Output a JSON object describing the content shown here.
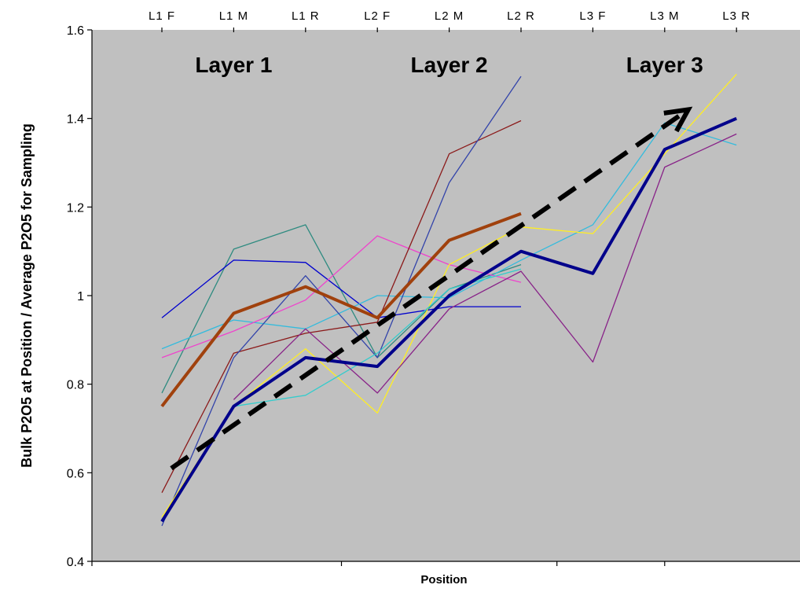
{
  "chart_data": {
    "type": "line",
    "title": "",
    "xlabel": "Position",
    "ylabel": "Bulk P2O5 at Position / Average P2O5 for Sampling",
    "ylim": [
      0.4,
      1.6
    ],
    "y_ticks": [
      "0.4",
      "0.6",
      "0.8",
      "1",
      "1.2",
      "1.4",
      "1.6"
    ],
    "categories": [
      "L1 F",
      "L1 M",
      "L1 R",
      "L2 F",
      "L2 M",
      "L2 R",
      "L3 F",
      "L3 M",
      "L3 R"
    ],
    "x_axis_position": "top",
    "grid": false,
    "plot_background": "#c0c0c0",
    "layer_labels": [
      {
        "text": "Layer 1",
        "category": "L1 M"
      },
      {
        "text": "Layer 2",
        "category": "L2 M"
      },
      {
        "text": "Layer 3",
        "category": "L3 M"
      }
    ],
    "trend_arrow": {
      "from": {
        "category": "L1 F",
        "value": 0.61
      },
      "to": {
        "category": "L3 M",
        "value": 1.42
      },
      "color": "#000000",
      "style": "dashed"
    },
    "series": [
      {
        "color": "#a0410d",
        "width": 4,
        "values": [
          0.75,
          0.96,
          1.02,
          0.95,
          1.125,
          1.185,
          null,
          null,
          null
        ]
      },
      {
        "color": "#00008b",
        "width": 4,
        "values": [
          0.49,
          0.75,
          0.86,
          0.84,
          1.0,
          1.1,
          1.05,
          1.33,
          1.4
        ]
      },
      {
        "color": "#2e8b80",
        "width": 1.3,
        "values": [
          0.78,
          1.105,
          1.16,
          0.86,
          1.015,
          1.07,
          null,
          null,
          null
        ]
      },
      {
        "color": "#0000cd",
        "width": 1.3,
        "values": [
          0.95,
          1.08,
          1.075,
          0.95,
          0.975,
          0.975,
          null,
          null,
          null
        ]
      },
      {
        "color": "#33bbdd",
        "width": 1.3,
        "values": [
          0.88,
          0.945,
          0.925,
          1.0,
          0.995,
          1.08,
          1.16,
          1.39,
          1.34
        ]
      },
      {
        "color": "#ee44cc",
        "width": 1.3,
        "values": [
          0.86,
          0.92,
          0.99,
          1.135,
          1.07,
          1.03,
          null,
          null,
          null
        ]
      },
      {
        "color": "#8b1a1a",
        "width": 1.3,
        "values": [
          0.555,
          0.87,
          0.915,
          0.94,
          1.32,
          1.395,
          null,
          null,
          null
        ]
      },
      {
        "color": "#3344aa",
        "width": 1.3,
        "values": [
          0.48,
          0.86,
          1.045,
          0.86,
          1.255,
          1.495,
          null,
          null,
          null
        ]
      },
      {
        "color": "#ffee22",
        "width": 1.3,
        "values": [
          0.5,
          0.75,
          0.88,
          0.735,
          1.07,
          1.155,
          1.14,
          1.32,
          1.5
        ]
      },
      {
        "color": "#33cccc",
        "width": 1.3,
        "values": [
          null,
          0.75,
          0.775,
          0.87,
          1.015,
          1.06,
          null,
          null,
          null
        ]
      },
      {
        "color": "#882288",
        "width": 1.3,
        "values": [
          null,
          0.765,
          0.925,
          0.78,
          0.97,
          1.055,
          0.85,
          1.29,
          1.365
        ]
      }
    ]
  }
}
